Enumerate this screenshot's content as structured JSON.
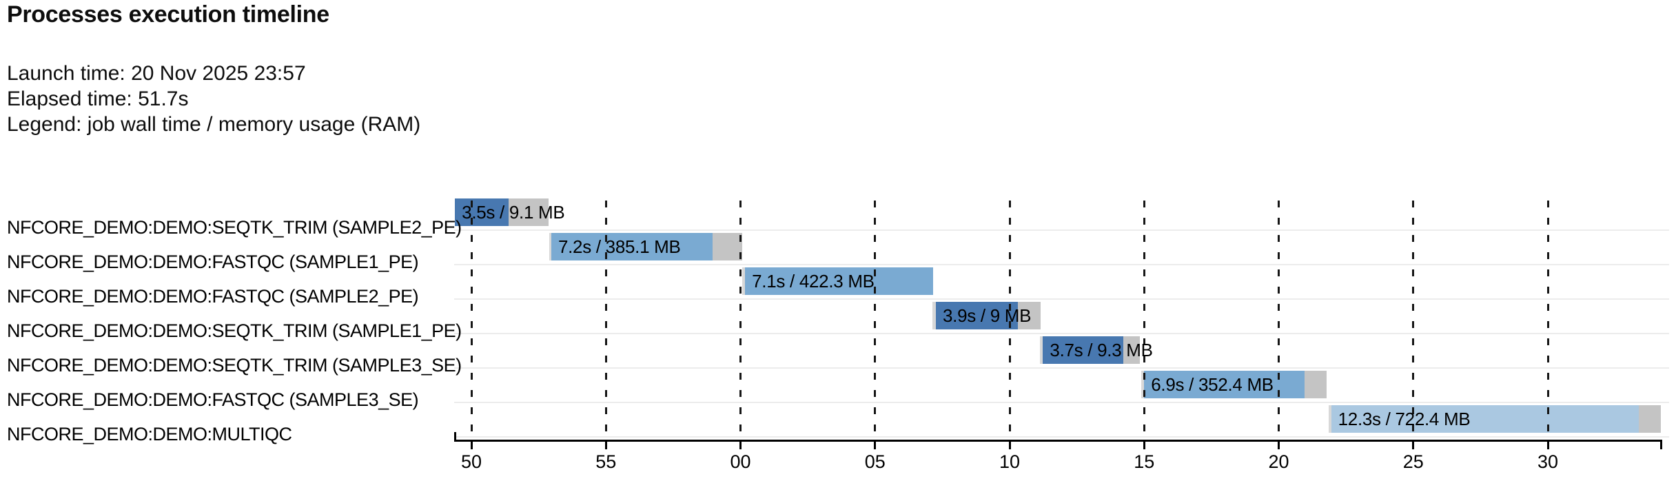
{
  "header": {
    "title": "Processes execution timeline",
    "launch_line": "Launch time: 20 Nov 2025 23:57",
    "elapsed_line": "Elapsed time: 51.7s",
    "legend_line": "Legend: job wall time / memory usage (RAM)"
  },
  "colors": {
    "bar_dark_blue": "#4878b0",
    "bar_medium_blue": "#7aaad2",
    "bar_light_blue": "#aac8e1",
    "bar_gray_tail": "#c4c4c4",
    "bar_gray_sliver": "#d8d8d8",
    "row_separator": "#ececec",
    "gridline": "#161616",
    "axis": "#000000",
    "text": "#000000"
  },
  "chart_data": {
    "type": "gantt",
    "title": "Processes execution timeline",
    "launch_time": "20 Nov 2025 23:57",
    "elapsed_time": "51.7s",
    "legend": "job wall time / memory usage (RAM)",
    "axis": {
      "unit": "seconds on wall clock (minute wraps at 00)",
      "tick_values": [
        50,
        55,
        60,
        65,
        70,
        75,
        80,
        85,
        90
      ],
      "tick_labels": [
        "50",
        "55",
        "00",
        "05",
        "10",
        "15",
        "20",
        "25",
        "30"
      ],
      "domain": [
        49.36,
        94.25
      ],
      "grid": "dashed vertical lines at each tick"
    },
    "rows": [
      {
        "process": "NFCORE_DEMO:DEMO:SEQTK_TRIM (SAMPLE2_PE)",
        "label": "3.5s / 9.1 MB",
        "wall_time": "3.5s",
        "memory": "9.1 MB",
        "shade": "dark",
        "start": 49.39,
        "blue_start": 49.39,
        "blue_end": 51.38,
        "end": 52.87
      },
      {
        "process": "NFCORE_DEMO:DEMO:FASTQC (SAMPLE1_PE)",
        "label": "7.2s / 385.1 MB",
        "wall_time": "7.2s",
        "memory": "385.1 MB",
        "shade": "medium",
        "start": 52.89,
        "blue_start": 52.97,
        "blue_end": 58.96,
        "end": 60.06
      },
      {
        "process": "NFCORE_DEMO:DEMO:FASTQC (SAMPLE2_PE)",
        "label": "7.1s / 422.3 MB",
        "wall_time": "7.1s",
        "memory": "422.3 MB",
        "shade": "medium",
        "start": 60.06,
        "blue_start": 60.17,
        "blue_end": 67.16,
        "end": 67.16
      },
      {
        "process": "NFCORE_DEMO:DEMO:SEQTK_TRIM (SAMPLE1_PE)",
        "label": "3.9s / 9 MB",
        "wall_time": "3.9s",
        "memory": "9 MB",
        "shade": "dark",
        "start": 67.13,
        "blue_start": 67.26,
        "blue_end": 70.31,
        "end": 71.15
      },
      {
        "process": "NFCORE_DEMO:DEMO:SEQTK_TRIM (SAMPLE3_SE)",
        "label": "3.7s / 9.3 MB",
        "wall_time": "3.7s",
        "memory": "9.3 MB",
        "shade": "dark",
        "start": 71.13,
        "blue_start": 71.24,
        "blue_end": 74.22,
        "end": 74.84
      },
      {
        "process": "NFCORE_DEMO:DEMO:FASTQC (SAMPLE3_SE)",
        "label": "6.9s / 352.4 MB",
        "wall_time": "6.9s",
        "memory": "352.4 MB",
        "shade": "medium",
        "start": 74.89,
        "blue_start": 75.0,
        "blue_end": 80.96,
        "end": 81.78
      },
      {
        "process": "NFCORE_DEMO:DEMO:MULTIQC",
        "label": "12.3s / 722.4 MB",
        "wall_time": "12.3s",
        "memory": "722.4 MB",
        "shade": "light",
        "start": 81.85,
        "blue_start": 81.95,
        "blue_end": 93.38,
        "end": 94.2
      }
    ]
  }
}
